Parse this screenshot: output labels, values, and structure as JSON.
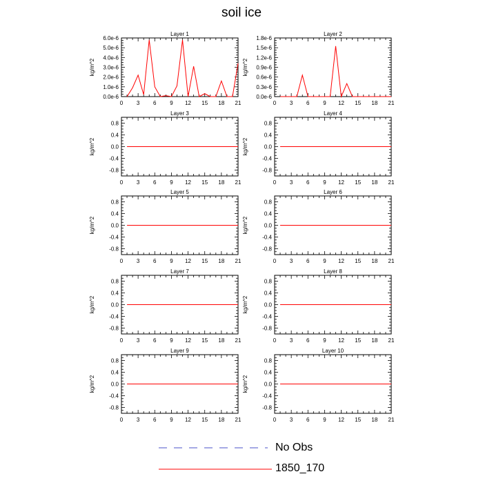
{
  "figure": {
    "title": "soil ice",
    "legend": [
      {
        "label": "No Obs",
        "color": "#4a50c8",
        "style": "dashed"
      },
      {
        "label": "1850_170",
        "color": "#ff0000",
        "style": "solid"
      }
    ]
  },
  "chart_data": [
    {
      "type": "line",
      "title": "Layer 1",
      "xlabel": "",
      "ylabel": "kg/m^2",
      "xlim": [
        0,
        21
      ],
      "ylim": [
        0,
        6e-06
      ],
      "xticks": [
        0,
        3,
        6,
        9,
        12,
        15,
        18,
        21
      ],
      "yticks": [
        0,
        1e-06,
        2e-06,
        3e-06,
        4e-06,
        5e-06,
        6e-06
      ],
      "ytick_labels": [
        "0.0e-6",
        "1.0e-6",
        "2.0e-6",
        "3.0e-6",
        "4.0e-6",
        "5.0e-6",
        "6.0e-6"
      ],
      "series": [
        {
          "name": "1850_170",
          "color": "#ff0000",
          "x": [
            1,
            2,
            3,
            4,
            5,
            6,
            7,
            8,
            9,
            10,
            11,
            12,
            13,
            14,
            15,
            16,
            17,
            18,
            19,
            20,
            21
          ],
          "values": [
            0,
            9e-07,
            2.2e-06,
            2e-07,
            5.8e-06,
            1e-06,
            0,
            1e-07,
            0,
            1.1e-06,
            5.8e-06,
            0,
            3.1e-06,
            0,
            3e-07,
            0,
            0,
            1.6e-06,
            0,
            0,
            3.4e-06
          ]
        }
      ]
    },
    {
      "type": "line",
      "title": "Layer 2",
      "xlabel": "",
      "ylabel": "kg/m^2",
      "xlim": [
        0,
        21
      ],
      "ylim": [
        0,
        1.8e-06
      ],
      "xticks": [
        0,
        3,
        6,
        9,
        12,
        15,
        18,
        21
      ],
      "yticks": [
        0,
        3e-07,
        6e-07,
        9e-07,
        1.2e-06,
        1.5e-06,
        1.8e-06
      ],
      "ytick_labels": [
        "0.0e-6",
        "0.3e-6",
        "0.6e-6",
        "0.9e-6",
        "1.2e-6",
        "1.5e-6",
        "1.8e-6"
      ],
      "series": [
        {
          "name": "1850_170",
          "color": "#ff0000",
          "x": [
            1,
            2,
            3,
            4,
            5,
            6,
            7,
            8,
            9,
            10,
            11,
            12,
            13,
            14,
            15,
            16,
            17,
            18,
            19,
            20,
            21
          ],
          "values": [
            0,
            0,
            0,
            0,
            6.6e-07,
            0,
            0,
            0,
            0,
            0,
            1.55e-06,
            0,
            4e-07,
            0,
            0,
            0,
            0,
            0,
            0,
            0,
            0
          ]
        }
      ]
    },
    {
      "type": "line",
      "title": "Layer 3",
      "xlabel": "",
      "ylabel": "kg/m^2",
      "xlim": [
        0,
        21
      ],
      "ylim": [
        -1,
        1
      ],
      "xticks": [
        0,
        3,
        6,
        9,
        12,
        15,
        18,
        21
      ],
      "yticks": [
        -0.8,
        -0.4,
        0,
        0.4,
        0.8
      ],
      "ytick_labels": [
        "-0.8",
        "-0.4",
        "0.0",
        "0.4",
        "0.8"
      ],
      "series": [
        {
          "name": "1850_170",
          "color": "#ff0000",
          "x": [
            1,
            21
          ],
          "values": [
            0,
            0
          ]
        }
      ]
    },
    {
      "type": "line",
      "title": "Layer 4",
      "xlabel": "",
      "ylabel": "kg/m^2",
      "xlim": [
        0,
        21
      ],
      "ylim": [
        -1,
        1
      ],
      "xticks": [
        0,
        3,
        6,
        9,
        12,
        15,
        18,
        21
      ],
      "yticks": [
        -0.8,
        -0.4,
        0,
        0.4,
        0.8
      ],
      "ytick_labels": [
        "-0.8",
        "-0.4",
        "0.0",
        "0.4",
        "0.8"
      ],
      "series": [
        {
          "name": "1850_170",
          "color": "#ff0000",
          "x": [
            1,
            21
          ],
          "values": [
            0,
            0
          ]
        }
      ]
    },
    {
      "type": "line",
      "title": "Layer 5",
      "xlabel": "",
      "ylabel": "kg/m^2",
      "xlim": [
        0,
        21
      ],
      "ylim": [
        -1,
        1
      ],
      "xticks": [
        0,
        3,
        6,
        9,
        12,
        15,
        18,
        21
      ],
      "yticks": [
        -0.8,
        -0.4,
        0,
        0.4,
        0.8
      ],
      "ytick_labels": [
        "-0.8",
        "-0.4",
        "0.0",
        "0.4",
        "0.8"
      ],
      "series": [
        {
          "name": "1850_170",
          "color": "#ff0000",
          "x": [
            1,
            21
          ],
          "values": [
            0,
            0
          ]
        }
      ]
    },
    {
      "type": "line",
      "title": "Layer 6",
      "xlabel": "",
      "ylabel": "kg/m^2",
      "xlim": [
        0,
        21
      ],
      "ylim": [
        -1,
        1
      ],
      "xticks": [
        0,
        3,
        6,
        9,
        12,
        15,
        18,
        21
      ],
      "yticks": [
        -0.8,
        -0.4,
        0,
        0.4,
        0.8
      ],
      "ytick_labels": [
        "-0.8",
        "-0.4",
        "0.0",
        "0.4",
        "0.8"
      ],
      "series": [
        {
          "name": "1850_170",
          "color": "#ff0000",
          "x": [
            1,
            21
          ],
          "values": [
            0,
            0
          ]
        }
      ]
    },
    {
      "type": "line",
      "title": "Layer 7",
      "xlabel": "",
      "ylabel": "kg/m^2",
      "xlim": [
        0,
        21
      ],
      "ylim": [
        -1,
        1
      ],
      "xticks": [
        0,
        3,
        6,
        9,
        12,
        15,
        18,
        21
      ],
      "yticks": [
        -0.8,
        -0.4,
        0,
        0.4,
        0.8
      ],
      "ytick_labels": [
        "-0.8",
        "-0.4",
        "0.0",
        "0.4",
        "0.8"
      ],
      "series": [
        {
          "name": "1850_170",
          "color": "#ff0000",
          "x": [
            1,
            21
          ],
          "values": [
            0,
            0
          ]
        }
      ]
    },
    {
      "type": "line",
      "title": "Layer 8",
      "xlabel": "",
      "ylabel": "kg/m^2",
      "xlim": [
        0,
        21
      ],
      "ylim": [
        -1,
        1
      ],
      "xticks": [
        0,
        3,
        6,
        9,
        12,
        15,
        18,
        21
      ],
      "yticks": [
        -0.8,
        -0.4,
        0,
        0.4,
        0.8
      ],
      "ytick_labels": [
        "-0.8",
        "-0.4",
        "0.0",
        "0.4",
        "0.8"
      ],
      "series": [
        {
          "name": "1850_170",
          "color": "#ff0000",
          "x": [
            1,
            21
          ],
          "values": [
            0,
            0
          ]
        }
      ]
    },
    {
      "type": "line",
      "title": "Layer 9",
      "xlabel": "",
      "ylabel": "kg/m^2",
      "xlim": [
        0,
        21
      ],
      "ylim": [
        -1,
        1
      ],
      "xticks": [
        0,
        3,
        6,
        9,
        12,
        15,
        18,
        21
      ],
      "yticks": [
        -0.8,
        -0.4,
        0,
        0.4,
        0.8
      ],
      "ytick_labels": [
        "-0.8",
        "-0.4",
        "0.0",
        "0.4",
        "0.8"
      ],
      "series": [
        {
          "name": "1850_170",
          "color": "#ff0000",
          "x": [
            1,
            21
          ],
          "values": [
            0,
            0
          ]
        }
      ]
    },
    {
      "type": "line",
      "title": "Layer 10",
      "xlabel": "",
      "ylabel": "kg/m^2",
      "xlim": [
        0,
        21
      ],
      "ylim": [
        -1,
        1
      ],
      "xticks": [
        0,
        3,
        6,
        9,
        12,
        15,
        18,
        21
      ],
      "yticks": [
        -0.8,
        -0.4,
        0,
        0.4,
        0.8
      ],
      "ytick_labels": [
        "-0.8",
        "-0.4",
        "0.0",
        "0.4",
        "0.8"
      ],
      "series": [
        {
          "name": "1850_170",
          "color": "#ff0000",
          "x": [
            1,
            21
          ],
          "values": [
            0,
            0
          ]
        }
      ]
    }
  ]
}
